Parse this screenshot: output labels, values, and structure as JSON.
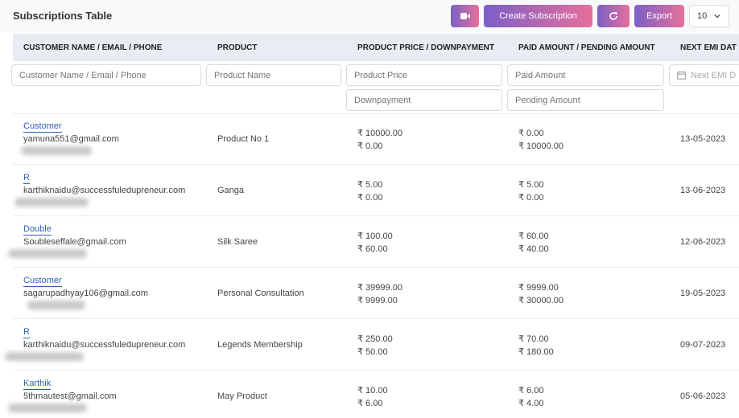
{
  "header": {
    "title": "Subscriptions Table",
    "create_label": "Create Subscription",
    "export_label": "Export",
    "page_size": "10"
  },
  "columns": {
    "customer": "CUSTOMER NAME / EMAIL / PHONE",
    "product": "PRODUCT",
    "price": "PRODUCT PRICE / DOWNPAYMENT",
    "paid": "PAID AMOUNT / PENDING AMOUNT",
    "next_emi": "NEXT EMI DAT"
  },
  "filters": {
    "customer": "Customer Name / Email / Phone",
    "product": "Product Name",
    "price": "Product Price",
    "downpayment": "Downpayment",
    "paid": "Paid Amount",
    "pending": "Pending Amount",
    "next_emi": "Next EMI D"
  },
  "rows": [
    {
      "name": "Customer",
      "email": "yamuna551@gmail.com",
      "product": "Product No 1",
      "price": "₹ 10000.00",
      "downpayment": "₹ 0.00",
      "paid": "₹ 0.00",
      "pending": "₹ 10000.00",
      "next_emi": "13-05-2023"
    },
    {
      "name": "R",
      "email": "karthiknaidu@successfuledupreneur.com",
      "product": "Ganga",
      "price": "₹ 5.00",
      "downpayment": "₹ 0.00",
      "paid": "₹ 5.00",
      "pending": "₹ 0.00",
      "next_emi": "13-06-2023"
    },
    {
      "name": "Double",
      "email": "Soubleseffale@gmail.com",
      "product": "Silk Saree",
      "price": "₹ 100.00",
      "downpayment": "₹ 60.00",
      "paid": "₹ 60.00",
      "pending": "₹ 40.00",
      "next_emi": "12-06-2023"
    },
    {
      "name": "Customer",
      "email": "sagarupadhyay106@gmail.com",
      "product": "Personal Consultation",
      "price": "₹ 39999.00",
      "downpayment": "₹ 9999.00",
      "paid": "₹ 9999.00",
      "pending": "₹ 30000.00",
      "next_emi": "19-05-2023"
    },
    {
      "name": "R",
      "email": "karthiknaidu@successfuledupreneur.com",
      "product": "Legends Membership",
      "price": "₹ 250.00",
      "downpayment": "₹ 50.00",
      "paid": "₹ 70.00",
      "pending": "₹ 180.00",
      "next_emi": "09-07-2023"
    },
    {
      "name": "Karthik",
      "email": "5thmautest@gmail.com",
      "product": "May Product",
      "price": "₹ 10.00",
      "downpayment": "₹ 6.00",
      "paid": "₹ 6.00",
      "pending": "₹ 4.00",
      "next_emi": "05-06-2023"
    }
  ],
  "icons": {
    "video": "video-camera-icon",
    "refresh": "refresh-icon",
    "chevron": "chevron-down-icon",
    "calendar": "calendar-icon"
  }
}
